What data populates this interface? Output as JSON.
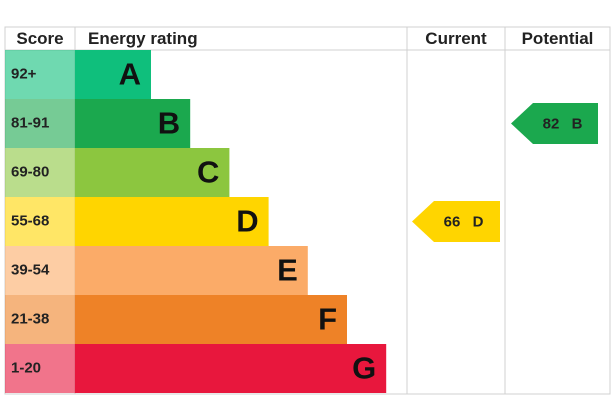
{
  "chart_data": {
    "type": "epc",
    "columns": [
      "Score",
      "Energy rating",
      "Current",
      "Potential"
    ],
    "bands": [
      {
        "score": "92+",
        "letter": "A",
        "color": "#0fbf7c"
      },
      {
        "score": "81-91",
        "letter": "B",
        "color": "#1ba84e"
      },
      {
        "score": "69-80",
        "letter": "C",
        "color": "#8cc63f"
      },
      {
        "score": "55-68",
        "letter": "D",
        "color": "#ffd500"
      },
      {
        "score": "39-54",
        "letter": "E",
        "color": "#fbab68"
      },
      {
        "score": "21-38",
        "letter": "F",
        "color": "#ee8227"
      },
      {
        "score": "1-20",
        "letter": "G",
        "color": "#e8173d"
      }
    ],
    "current": {
      "value": 66,
      "letter": "D"
    },
    "potential": {
      "value": 82,
      "letter": "B"
    }
  }
}
